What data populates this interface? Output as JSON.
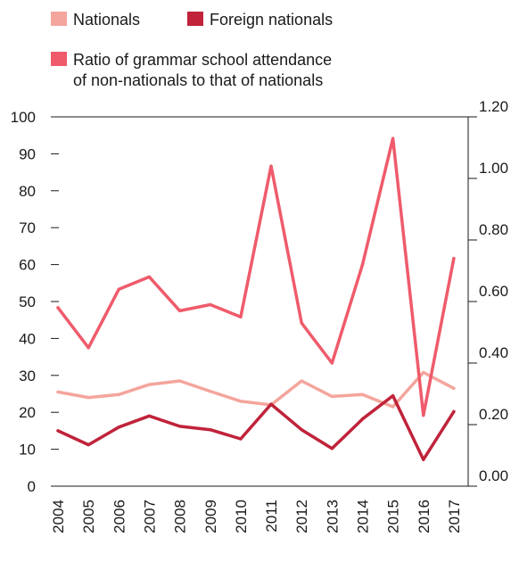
{
  "chart_data": {
    "type": "line",
    "categories": [
      "2004",
      "2005",
      "2006",
      "2007",
      "2008",
      "2009",
      "2010",
      "2011",
      "2012",
      "2013",
      "2014",
      "2015",
      "2016",
      "2017"
    ],
    "series": [
      {
        "name": "Nationals",
        "axis": "left",
        "color": "#f4a59c",
        "values": [
          25.5,
          24,
          24.8,
          27.5,
          28.5,
          25.7,
          23,
          22,
          28.5,
          24.3,
          24.8,
          21.5,
          30.8,
          26.5
        ]
      },
      {
        "name": "Foreign nationals",
        "axis": "left",
        "color": "#c0233a",
        "values": [
          15,
          11.2,
          16,
          19,
          16.2,
          15.3,
          12.8,
          22.2,
          15.3,
          10.2,
          18.2,
          24.5,
          7.2,
          20.2
        ]
      },
      {
        "name": "Ratio of grammar school attendance of non-nationals to that of nationals",
        "axis": "right",
        "color": "#ef5b6b",
        "values": [
          0.58,
          0.45,
          0.64,
          0.68,
          0.57,
          0.59,
          0.55,
          1.04,
          0.53,
          0.4,
          0.72,
          1.13,
          0.23,
          0.74
        ]
      }
    ],
    "legend": [
      {
        "label": "Nationals",
        "color": "#f4a59c"
      },
      {
        "label": "Foreign nationals",
        "color": "#c0233a"
      },
      {
        "label_lines": [
          "Ratio of grammar school attendance",
          "of non-nationals to that of nationals"
        ],
        "color": "#ef5b6b"
      }
    ],
    "y_left": {
      "ylim": [
        0,
        100
      ],
      "ticks": [
        "0",
        "10",
        "20",
        "30",
        "40",
        "50",
        "60",
        "70",
        "80",
        "90",
        "100"
      ]
    },
    "y_right": {
      "ylim": [
        0,
        1.2
      ],
      "ticks": [
        "0.00",
        "0.20",
        "0.40",
        "0.60",
        "0.80",
        "1.00",
        "1.20"
      ]
    },
    "legend_position": "top-left",
    "grid": false
  }
}
